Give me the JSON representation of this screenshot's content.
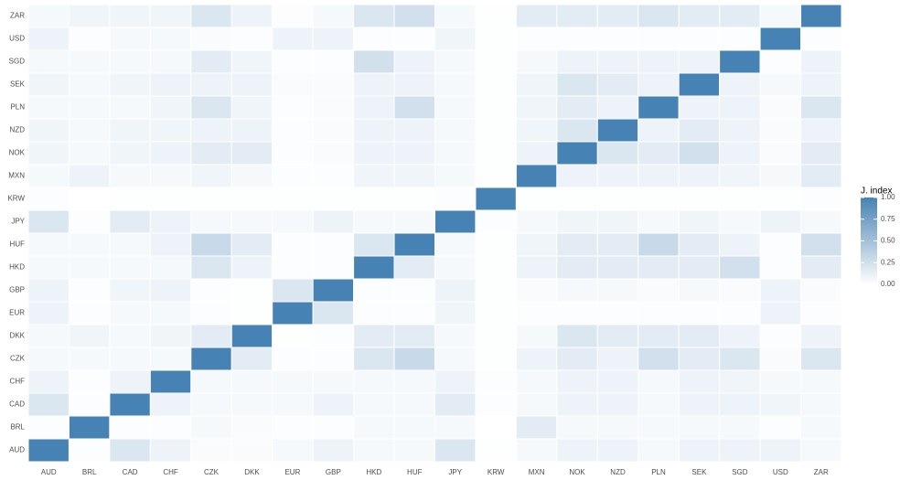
{
  "chart_data": {
    "type": "heatmap",
    "x": [
      "AUD",
      "BRL",
      "CAD",
      "CHF",
      "CZK",
      "DKK",
      "EUR",
      "GBP",
      "HKD",
      "HUF",
      "JPY",
      "KRW",
      "MXN",
      "NOK",
      "NZD",
      "PLN",
      "SEK",
      "SGD",
      "USD",
      "ZAR"
    ],
    "y": [
      "AUD",
      "BRL",
      "CAD",
      "CHF",
      "CZK",
      "DKK",
      "EUR",
      "GBP",
      "HKD",
      "HUF",
      "JPY",
      "KRW",
      "MXN",
      "NOK",
      "NZD",
      "PLN",
      "SEK",
      "SGD",
      "USD",
      "ZAR"
    ],
    "z": [
      [
        1,
        0.02,
        0.2,
        0.1,
        0.03,
        0.03,
        0.05,
        0.1,
        0.05,
        0.05,
        0.2,
        0.01,
        0.05,
        0.1,
        0.1,
        0.05,
        0.1,
        0.1,
        0.1,
        0.05
      ],
      [
        0.02,
        1,
        0.02,
        0.02,
        0.05,
        0.03,
        0.02,
        0.02,
        0.05,
        0.05,
        0.05,
        0,
        0.15,
        0.05,
        0.05,
        0.05,
        0.05,
        0.05,
        0.02,
        0.05
      ],
      [
        0.2,
        0.02,
        1,
        0.1,
        0.05,
        0.05,
        0.05,
        0.1,
        0.05,
        0.05,
        0.15,
        0.02,
        0.05,
        0.1,
        0.1,
        0.05,
        0.1,
        0.1,
        0.08,
        0.05
      ],
      [
        0.1,
        0.02,
        0.1,
        1,
        0.05,
        0.05,
        0.05,
        0.05,
        0.05,
        0.05,
        0.1,
        0.02,
        0.05,
        0.1,
        0.1,
        0.05,
        0.1,
        0.08,
        0.05,
        0.05
      ],
      [
        0.05,
        0.05,
        0.05,
        0.05,
        1,
        0.15,
        0.02,
        0.02,
        0.2,
        0.3,
        0.05,
        0.01,
        0.1,
        0.15,
        0.1,
        0.25,
        0.15,
        0.2,
        0.03,
        0.2
      ],
      [
        0.05,
        0.08,
        0.05,
        0.08,
        0.15,
        1,
        0.01,
        0.02,
        0.15,
        0.15,
        0.05,
        0.01,
        0.05,
        0.2,
        0.15,
        0.15,
        0.15,
        0.1,
        0.02,
        0.1
      ],
      [
        0.1,
        0.02,
        0.05,
        0.05,
        0.02,
        0.01,
        1,
        0.2,
        0.02,
        0.02,
        0.08,
        0.01,
        0.02,
        0.02,
        0.02,
        0.02,
        0.02,
        0.02,
        0.1,
        0.02
      ],
      [
        0.1,
        0.02,
        0.08,
        0.1,
        0.02,
        0.01,
        0.2,
        1,
        0.02,
        0.02,
        0.1,
        0.01,
        0.03,
        0.05,
        0.05,
        0.03,
        0.05,
        0.03,
        0.1,
        0.03
      ],
      [
        0.05,
        0.05,
        0.05,
        0.05,
        0.2,
        0.1,
        0.02,
        0.02,
        1,
        0.15,
        0.05,
        0.01,
        0.1,
        0.15,
        0.15,
        0.15,
        0.15,
        0.25,
        0.02,
        0.15
      ],
      [
        0.05,
        0.05,
        0.05,
        0.1,
        0.3,
        0.15,
        0.02,
        0.02,
        0.2,
        1,
        0.05,
        0.01,
        0.08,
        0.15,
        0.15,
        0.3,
        0.15,
        0.1,
        0.02,
        0.25
      ],
      [
        0.2,
        0.02,
        0.15,
        0.1,
        0.05,
        0.05,
        0.05,
        0.1,
        0.05,
        0.05,
        1,
        0.02,
        0.05,
        0.08,
        0.08,
        0.05,
        0.08,
        0.05,
        0.1,
        0.05
      ],
      [
        0.02,
        0,
        0.01,
        0.01,
        0.01,
        0.01,
        0.01,
        0.01,
        0.01,
        0.01,
        0.02,
        1,
        0.01,
        0.01,
        0.01,
        0.01,
        0.01,
        0.01,
        0.01,
        0.02
      ],
      [
        0.05,
        0.1,
        0.05,
        0.05,
        0.08,
        0.05,
        0.02,
        0.02,
        0.08,
        0.08,
        0.05,
        0.01,
        1,
        0.1,
        0.1,
        0.1,
        0.1,
        0.08,
        0.05,
        0.15
      ],
      [
        0.08,
        0.05,
        0.08,
        0.1,
        0.15,
        0.15,
        0.02,
        0.03,
        0.1,
        0.1,
        0.05,
        0.01,
        0.1,
        1,
        0.2,
        0.15,
        0.25,
        0.1,
        0.03,
        0.15
      ],
      [
        0.08,
        0.05,
        0.08,
        0.08,
        0.1,
        0.1,
        0.02,
        0.03,
        0.1,
        0.1,
        0.05,
        0.01,
        0.08,
        0.2,
        1,
        0.1,
        0.15,
        0.1,
        0.03,
        0.1
      ],
      [
        0.05,
        0.05,
        0.05,
        0.08,
        0.2,
        0.08,
        0.02,
        0.03,
        0.1,
        0.25,
        0.05,
        0.01,
        0.08,
        0.15,
        0.1,
        1,
        0.1,
        0.1,
        0.03,
        0.2
      ],
      [
        0.08,
        0.05,
        0.08,
        0.1,
        0.1,
        0.1,
        0.03,
        0.03,
        0.1,
        0.1,
        0.05,
        0.01,
        0.08,
        0.2,
        0.15,
        0.1,
        1,
        0.1,
        0.05,
        0.1
      ],
      [
        0.05,
        0.05,
        0.05,
        0.05,
        0.15,
        0.08,
        0.02,
        0.02,
        0.25,
        0.1,
        0.05,
        0.01,
        0.05,
        0.1,
        0.1,
        0.1,
        0.1,
        1,
        0.02,
        0.1
      ],
      [
        0.1,
        0.02,
        0.05,
        0.05,
        0.03,
        0.02,
        0.1,
        0.1,
        0.02,
        0.02,
        0.08,
        0.01,
        0.02,
        0.02,
        0.02,
        0.02,
        0.02,
        0.02,
        1,
        0.02
      ],
      [
        0.05,
        0.08,
        0.08,
        0.08,
        0.2,
        0.1,
        0.02,
        0.05,
        0.2,
        0.25,
        0.05,
        0.01,
        0.15,
        0.15,
        0.15,
        0.2,
        0.15,
        0.15,
        0.05,
        1
      ]
    ],
    "legend_title": "J. index",
    "zlim": [
      0,
      1
    ],
    "zticks": [
      {
        "value": 0,
        "label": "0.00"
      },
      {
        "value": 0.25,
        "label": "0.25"
      },
      {
        "value": 0.5,
        "label": "0.50"
      },
      {
        "value": 0.75,
        "label": "0.75"
      },
      {
        "value": 1,
        "label": "1.00"
      }
    ],
    "color_low": "#ffffff",
    "color_high": "#4682b4"
  }
}
